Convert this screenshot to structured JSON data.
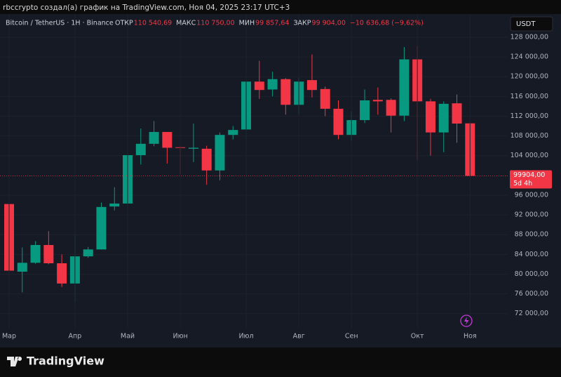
{
  "caption": "rbccrypto создал(а) график на TradingView.com, Ноя 04, 2025 23:17 UTC+3",
  "watermark": "TradingView",
  "chart_data": {
    "type": "candlestick",
    "symbol": "Bitcoin / TetherUS · 1Н · Binance",
    "ohlc_info": [
      {
        "key": "ОТКР",
        "value": "110 540,69"
      },
      {
        "key": "МАКС",
        "value": "110 750,00"
      },
      {
        "key": "МИН",
        "value": "99 857,64"
      },
      {
        "key": "ЗАКР",
        "value": "99 904,00"
      }
    ],
    "change": "−10 636,68 (−9,62%)",
    "currency": "USDT",
    "last_close_label": "99904,00",
    "countdown": "5d 4h",
    "categories": [
      "Мар",
      null,
      null,
      null,
      null,
      "Апр",
      null,
      null,
      null,
      "Май",
      null,
      null,
      null,
      "Июн",
      null,
      null,
      null,
      null,
      "Июл",
      null,
      null,
      null,
      "Авг",
      null,
      null,
      null,
      "Сен",
      null,
      null,
      null,
      null,
      "Окт",
      null,
      null,
      null,
      "Ноя"
    ],
    "open": [
      94200,
      80500,
      82300,
      85900,
      82200,
      78100,
      83600,
      85000,
      93700,
      94300,
      104100,
      106400,
      108800,
      105700,
      105400,
      105400,
      101000,
      108200,
      109300,
      119000,
      117400,
      119500,
      114300,
      119300,
      117500,
      113500,
      108200,
      111200,
      115300,
      115300,
      112100,
      123500,
      115000,
      108700,
      114600,
      110540.69
    ],
    "high": [
      94300,
      85400,
      86700,
      88700,
      84000,
      87900,
      85500,
      94500,
      97600,
      104500,
      109500,
      111000,
      108800,
      106000,
      110500,
      106000,
      108700,
      110000,
      119000,
      123200,
      121000,
      119700,
      119800,
      124500,
      118000,
      115200,
      113000,
      117400,
      117800,
      115600,
      126000,
      126200,
      115500,
      115000,
      116400,
      110750
    ],
    "low": [
      80000,
      76300,
      82100,
      82000,
      77400,
      74300,
      83300,
      85000,
      92900,
      93400,
      102200,
      105900,
      102400,
      100200,
      102700,
      98100,
      99000,
      107300,
      107300,
      115500,
      116000,
      112300,
      112300,
      115800,
      112000,
      107300,
      107000,
      110600,
      112300,
      108700,
      111000,
      103000,
      104000,
      104700,
      106600,
      99857.64
    ],
    "close": [
      80700,
      82300,
      85900,
      82200,
      78100,
      83600,
      85000,
      93600,
      94300,
      104100,
      106400,
      108800,
      105600,
      105600,
      105600,
      101000,
      108200,
      109200,
      119000,
      117300,
      119500,
      114300,
      119000,
      117300,
      113500,
      108200,
      111200,
      115200,
      115000,
      112100,
      123500,
      115000,
      108700,
      114500,
      110500,
      99904
    ],
    "up_color": "#089981",
    "down_color": "#f23645",
    "ylim": [
      69400,
      132400
    ],
    "yticks": [
      {
        "value": 72000,
        "label": "72 000,00"
      },
      {
        "value": 76000,
        "label": "76 000,00"
      },
      {
        "value": 80000,
        "label": "80 000,00"
      },
      {
        "value": 84000,
        "label": "84 000,00"
      },
      {
        "value": 88000,
        "label": "88 000,00"
      },
      {
        "value": 92000,
        "label": "92 000,00"
      },
      {
        "value": 96000,
        "label": "96 000,00"
      },
      {
        "value": 104000,
        "label": "104 000,00"
      },
      {
        "value": 108000,
        "label": "108 000,00"
      },
      {
        "value": 112000,
        "label": "112 000,00"
      },
      {
        "value": 116000,
        "label": "116 000,00"
      },
      {
        "value": 120000,
        "label": "120 000,00"
      },
      {
        "value": 124000,
        "label": "124 000,00"
      },
      {
        "value": 128000,
        "label": "128 000,00"
      }
    ],
    "grid": true
  }
}
